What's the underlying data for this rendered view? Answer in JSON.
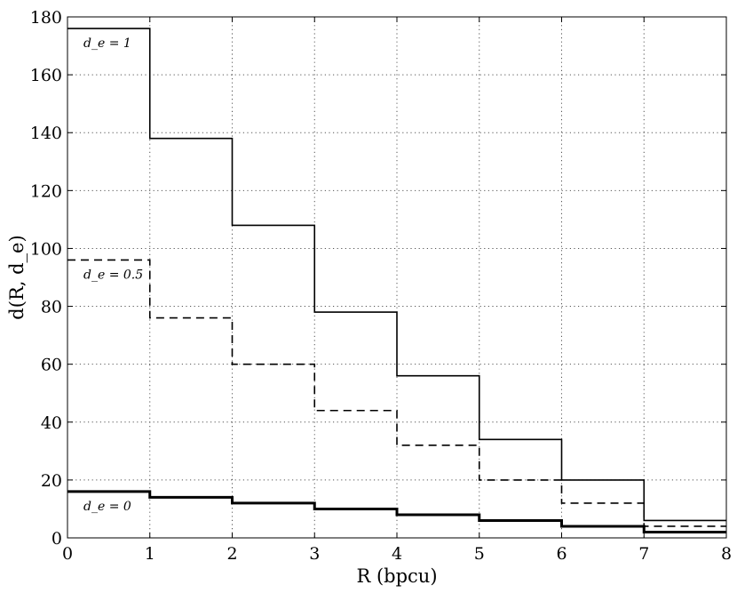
{
  "chart_data": {
    "type": "line",
    "step": "post",
    "title": "",
    "xlabel": "R (bpcu)",
    "ylabel": "d(R, d_e)",
    "xlim": [
      0,
      8
    ],
    "ylim": [
      0,
      180
    ],
    "xticks": [
      0,
      1,
      2,
      3,
      4,
      5,
      6,
      7,
      8
    ],
    "yticks": [
      0,
      20,
      40,
      60,
      80,
      100,
      120,
      140,
      160,
      180
    ],
    "grid": true,
    "legend": "none",
    "series": [
      {
        "name": "d_e = 1",
        "line_style": "solid",
        "line_weight": "thin",
        "x": [
          0,
          1,
          2,
          3,
          4,
          5,
          6,
          7,
          8
        ],
        "y": [
          176,
          138,
          108,
          78,
          56,
          34,
          20,
          6,
          6
        ]
      },
      {
        "name": "d_e = 0.5",
        "line_style": "dashed",
        "line_weight": "thin",
        "x": [
          0,
          1,
          2,
          3,
          4,
          5,
          6,
          7,
          8
        ],
        "y": [
          96,
          76,
          60,
          44,
          32,
          20,
          12,
          4,
          4
        ]
      },
      {
        "name": "d_e = 0",
        "line_style": "solid",
        "line_weight": "thick",
        "x": [
          0,
          1,
          2,
          3,
          4,
          5,
          6,
          7,
          8
        ],
        "y": [
          16,
          14,
          12,
          10,
          8,
          6,
          4,
          2,
          2
        ]
      }
    ],
    "annotations": [
      {
        "text": "d_e = 1",
        "series": 0
      },
      {
        "text": "d_e = 0.5",
        "series": 1
      },
      {
        "text": "d_e = 0",
        "series": 2
      }
    ]
  }
}
